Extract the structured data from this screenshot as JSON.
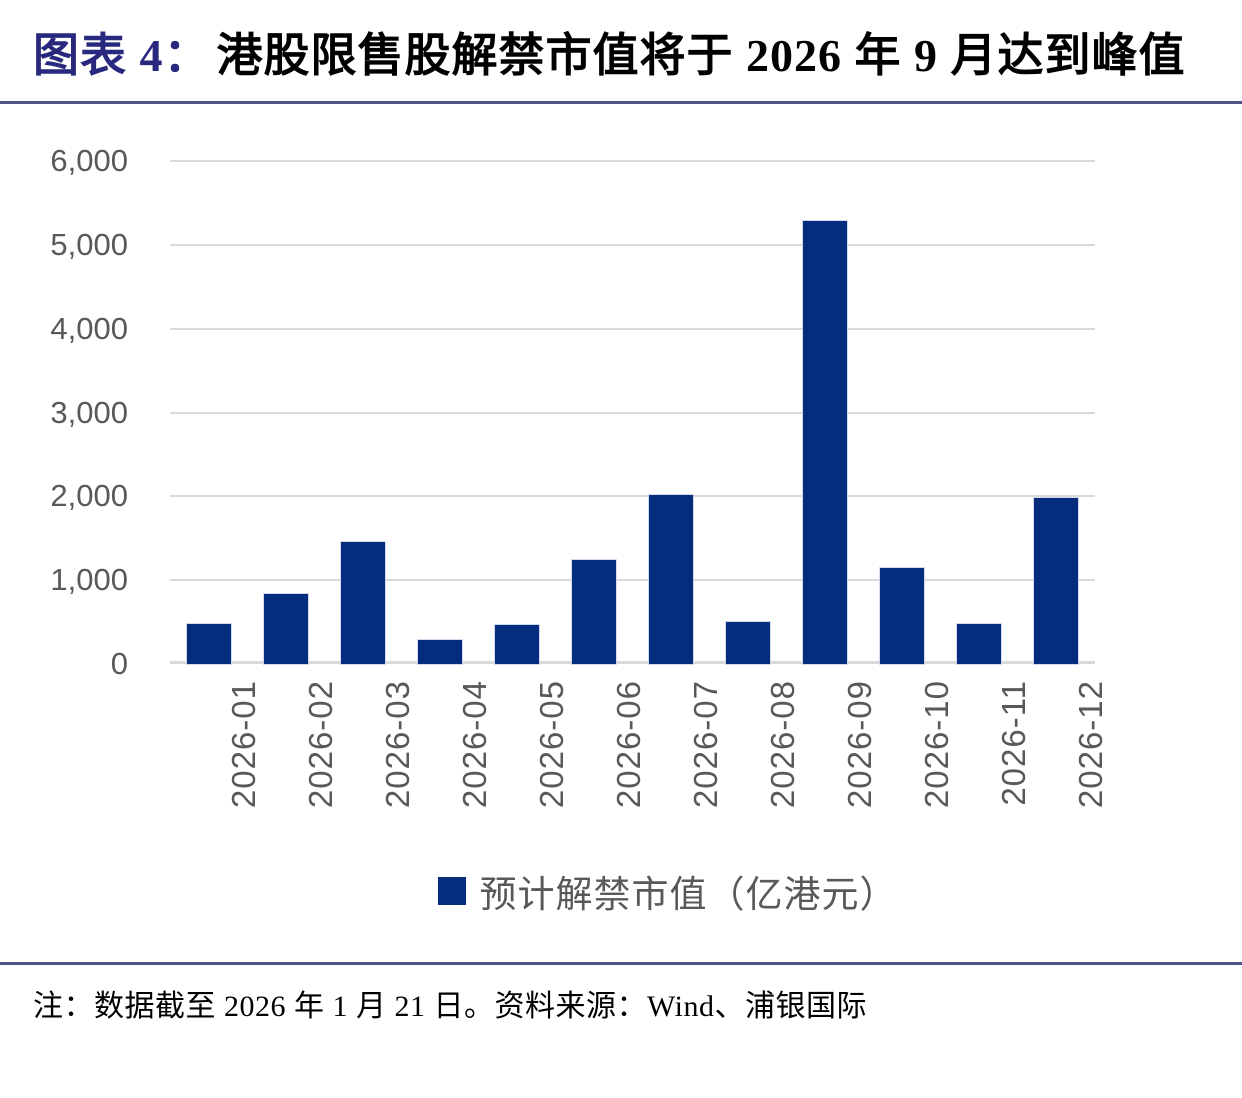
{
  "figure": {
    "label": "图表 4：",
    "title": "港股限售股解禁市值将于 2026 年 9 月达到峰值"
  },
  "chart_data": {
    "type": "bar",
    "title": "港股限售股解禁市值将于 2026 年 9 月达到峰值",
    "categories": [
      "2026-01",
      "2026-02",
      "2026-03",
      "2026-04",
      "2026-05",
      "2026-06",
      "2026-07",
      "2026-08",
      "2026-09",
      "2026-10",
      "2026-11",
      "2026-12"
    ],
    "values": [
      480,
      830,
      1460,
      290,
      465,
      1240,
      2020,
      505,
      5290,
      1140,
      475,
      1985
    ],
    "series_name": "预计解禁市值（亿港元）",
    "xlabel": "",
    "ylabel": "",
    "ylim": [
      0,
      6000
    ],
    "yticks": [
      0,
      1000,
      2000,
      3000,
      4000,
      5000,
      6000
    ],
    "ytick_labels": [
      "0",
      "1,000",
      "2,000",
      "3,000",
      "4,000",
      "5,000",
      "6,000"
    ],
    "grid": true,
    "legend_position": "bottom",
    "bar_color": "#042D7D"
  },
  "legend": {
    "label": "预计解禁市值（亿港元）"
  },
  "footnote": "注：数据截至 2026 年 1 月 21 日。资料来源：Wind、浦银国际",
  "colors": {
    "figure_label_navy": "#28287E",
    "bar_navy": "#042D7D",
    "separator_purple": "#54548C",
    "axis_text_gray": "#595959",
    "gridline_gray": "#D9D9D9"
  }
}
